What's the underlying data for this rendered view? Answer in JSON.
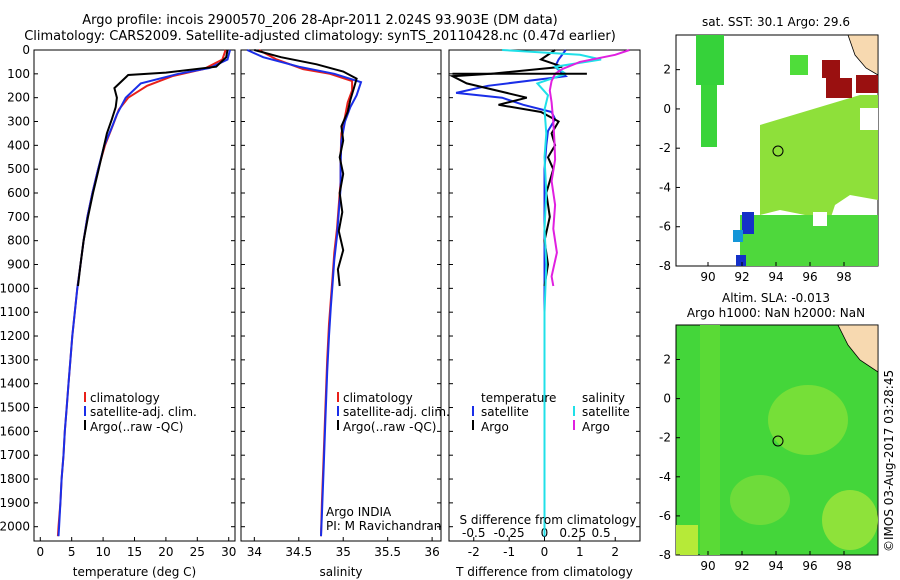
{
  "header": {
    "line1": "Argo profile: incois 2900570_206 28-Apr-2011 2.024S 93.903E (DM data)",
    "line2": "Climatology: CARS2009. Satellite-adjusted climatology: synTS_20110428.nc (0.47d earlier)"
  },
  "colors": {
    "climatology": "#e8201a",
    "satellite": "#1a2ee8",
    "argo": "#000000",
    "argo_salinity": "#e020e0",
    "satellite_salinity": "#20e0e8"
  },
  "chart_data": [
    {
      "type": "line",
      "title": "",
      "xlabel": "temperature (deg C)",
      "ylabel": "",
      "xlim": [
        -1,
        31
      ],
      "ylim": [
        2060,
        0
      ],
      "x_ticks": [
        0,
        5,
        10,
        15,
        20,
        25,
        30
      ],
      "y_ticks": [
        0,
        100,
        200,
        300,
        400,
        500,
        600,
        700,
        800,
        900,
        1000,
        1100,
        1200,
        1300,
        1400,
        1500,
        1600,
        1700,
        1800,
        1900,
        2000
      ],
      "legend": [
        "climatology",
        "satellite-adj. clim.",
        "Argo(..raw -QC)"
      ],
      "series": [
        {
          "name": "climatology",
          "color": "#e8201a",
          "points": [
            [
              29.5,
              0
            ],
            [
              29,
              40
            ],
            [
              26,
              80
            ],
            [
              21,
              110
            ],
            [
              17,
              150
            ],
            [
              14,
              200
            ],
            [
              12.5,
              250
            ],
            [
              11.5,
              320
            ],
            [
              10.3,
              400
            ],
            [
              9.2,
              500
            ],
            [
              8.3,
              600
            ],
            [
              7.5,
              700
            ],
            [
              6.9,
              800
            ],
            [
              6.4,
              900
            ],
            [
              5.9,
              1000
            ],
            [
              5.5,
              1100
            ],
            [
              5.1,
              1200
            ],
            [
              4.8,
              1300
            ],
            [
              4.5,
              1400
            ],
            [
              4.2,
              1500
            ],
            [
              3.9,
              1600
            ],
            [
              3.7,
              1700
            ],
            [
              3.4,
              1800
            ],
            [
              3.2,
              1900
            ],
            [
              2.9,
              2000
            ],
            [
              2.8,
              2040
            ]
          ]
        },
        {
          "name": "satellite-adj. clim.",
          "color": "#1a2ee8",
          "points": [
            [
              30.2,
              0
            ],
            [
              29.8,
              40
            ],
            [
              27,
              75
            ],
            [
              22,
              100
            ],
            [
              16,
              140
            ],
            [
              13.6,
              200
            ],
            [
              12.2,
              270
            ],
            [
              11.3,
              330
            ],
            [
              10.2,
              400
            ],
            [
              9.2,
              500
            ],
            [
              8.3,
              600
            ],
            [
              7.5,
              700
            ],
            [
              6.9,
              800
            ],
            [
              6.4,
              900
            ],
            [
              5.9,
              1000
            ],
            [
              5.5,
              1100
            ],
            [
              5.1,
              1200
            ],
            [
              4.8,
              1300
            ],
            [
              4.5,
              1400
            ],
            [
              4.2,
              1500
            ],
            [
              3.9,
              1600
            ],
            [
              3.7,
              1700
            ],
            [
              3.4,
              1800
            ],
            [
              3.2,
              1900
            ],
            [
              3.0,
              2000
            ],
            [
              2.9,
              2040
            ]
          ]
        },
        {
          "name": "Argo(..raw -QC)",
          "color": "#000000",
          "points": [
            [
              29.8,
              0
            ],
            [
              29.6,
              30
            ],
            [
              28,
              70
            ],
            [
              20,
              95
            ],
            [
              14,
              105
            ],
            [
              13,
              130
            ],
            [
              11.8,
              160
            ],
            [
              12.2,
              200
            ],
            [
              12.0,
              240
            ],
            [
              11.4,
              290
            ],
            [
              10.6,
              350
            ],
            [
              10.0,
              420
            ],
            [
              9.3,
              500
            ],
            [
              8.4,
              600
            ],
            [
              7.6,
              700
            ],
            [
              6.9,
              800
            ],
            [
              6.4,
              900
            ],
            [
              6.0,
              990
            ]
          ]
        }
      ]
    },
    {
      "type": "line",
      "title": "",
      "xlabel": "salinity",
      "ylabel": "",
      "xlim": [
        33.85,
        36.1
      ],
      "ylim": [
        2060,
        0
      ],
      "x_ticks": [
        34,
        34.5,
        35,
        35.5,
        36
      ],
      "legend": [
        "climatology",
        "satellite-adj. clim.",
        "Argo(..raw -QC)"
      ],
      "annotations": [
        "Argo INDIA",
        "PI: M Ravichandran"
      ],
      "series": [
        {
          "name": "climatology",
          "color": "#e8201a",
          "points": [
            [
              34.05,
              0
            ],
            [
              34.25,
              40
            ],
            [
              34.55,
              80
            ],
            [
              34.85,
              100
            ],
            [
              35.1,
              130
            ],
            [
              35.1,
              170
            ],
            [
              35.05,
              220
            ],
            [
              35.02,
              280
            ],
            [
              34.98,
              350
            ],
            [
              34.97,
              450
            ],
            [
              34.97,
              550
            ],
            [
              34.95,
              650
            ],
            [
              34.93,
              750
            ],
            [
              34.9,
              850
            ],
            [
              34.88,
              950
            ],
            [
              34.86,
              1050
            ],
            [
              34.84,
              1150
            ],
            [
              34.82,
              1300
            ],
            [
              34.8,
              1500
            ],
            [
              34.78,
              1700
            ],
            [
              34.76,
              1900
            ],
            [
              34.75,
              2040
            ]
          ]
        },
        {
          "name": "satellite-adj. clim.",
          "color": "#1a2ee8",
          "points": [
            [
              33.92,
              0
            ],
            [
              34.1,
              30
            ],
            [
              34.5,
              70
            ],
            [
              34.9,
              100
            ],
            [
              35.2,
              135
            ],
            [
              35.15,
              190
            ],
            [
              35.08,
              240
            ],
            [
              35.02,
              300
            ],
            [
              34.98,
              380
            ],
            [
              34.97,
              480
            ],
            [
              34.97,
              580
            ],
            [
              34.95,
              680
            ],
            [
              34.93,
              780
            ],
            [
              34.9,
              880
            ],
            [
              34.88,
              980
            ],
            [
              34.86,
              1080
            ],
            [
              34.84,
              1200
            ],
            [
              34.82,
              1350
            ],
            [
              34.8,
              1550
            ],
            [
              34.78,
              1750
            ],
            [
              34.76,
              1950
            ],
            [
              34.75,
              2040
            ]
          ]
        },
        {
          "name": "Argo(..raw -QC)",
          "color": "#000000",
          "points": [
            [
              34.0,
              0
            ],
            [
              34.3,
              30
            ],
            [
              34.7,
              60
            ],
            [
              35.0,
              90
            ],
            [
              35.15,
              120
            ],
            [
              35.12,
              160
            ],
            [
              35.08,
              210
            ],
            [
              35.05,
              260
            ],
            [
              34.98,
              320
            ],
            [
              35.0,
              380
            ],
            [
              34.96,
              450
            ],
            [
              35.0,
              520
            ],
            [
              34.96,
              600
            ],
            [
              34.99,
              680
            ],
            [
              34.95,
              760
            ],
            [
              35.0,
              840
            ],
            [
              34.94,
              920
            ],
            [
              34.96,
              990
            ]
          ]
        }
      ]
    },
    {
      "type": "line",
      "title": "",
      "xlabel": "T difference from climatology",
      "x2label": "S difference from climatology",
      "ylabel": "",
      "xlim": [
        -2.7,
        2.7
      ],
      "ylim": [
        2060,
        0
      ],
      "x_ticks": [
        -2,
        -1,
        0,
        1,
        2
      ],
      "x2_ticks": [
        "-0.5",
        "-0.25",
        "0",
        "0.25",
        "0.5"
      ],
      "legend": [
        "temperature",
        "satellite",
        "Argo",
        "salinity",
        "satellite",
        "Argo"
      ],
      "series": [
        {
          "name": "T satellite",
          "color": "#1a2ee8",
          "points": [
            [
              0.6,
              0
            ],
            [
              0.4,
              40
            ],
            [
              0.3,
              70
            ],
            [
              0.6,
              110
            ],
            [
              -1.6,
              150
            ],
            [
              -2.5,
              180
            ],
            [
              -1.2,
              200
            ],
            [
              -0.6,
              230
            ],
            [
              0.2,
              260
            ],
            [
              0.3,
              290
            ],
            [
              0.1,
              340
            ],
            [
              0.05,
              400
            ],
            [
              0.0,
              500
            ],
            [
              0.0,
              700
            ],
            [
              0.0,
              900
            ],
            [
              0.0,
              1100
            ],
            [
              0.0,
              1400
            ],
            [
              0.0,
              1700
            ],
            [
              0.0,
              2040
            ]
          ]
        },
        {
          "name": "T Argo",
          "color": "#000000",
          "points": [
            [
              0.3,
              0
            ],
            [
              -0.1,
              40
            ],
            [
              0.5,
              70
            ],
            [
              -1.5,
              100
            ],
            [
              -2.6,
              110
            ],
            [
              -2.2,
              140
            ],
            [
              -0.5,
              200
            ],
            [
              -1.3,
              230
            ],
            [
              -0.1,
              260
            ],
            [
              0.4,
              300
            ],
            [
              0.2,
              350
            ],
            [
              0.3,
              400
            ],
            [
              0.1,
              450
            ],
            [
              0.25,
              500
            ],
            [
              0.05,
              600
            ],
            [
              0.15,
              700
            ],
            [
              0.0,
              800
            ],
            [
              0.1,
              900
            ],
            [
              0.0,
              990
            ]
          ]
        },
        {
          "name": "S satellite",
          "color": "#20e0e8",
          "points": [
            [
              -1.2,
              0
            ],
            [
              1.0,
              20
            ],
            [
              1.6,
              40
            ],
            [
              0.3,
              70
            ],
            [
              0.6,
              100
            ],
            [
              -0.2,
              140
            ],
            [
              0.1,
              190
            ],
            [
              0.0,
              250
            ],
            [
              0.05,
              350
            ],
            [
              0.0,
              450
            ],
            [
              0.05,
              600
            ],
            [
              0.0,
              750
            ],
            [
              0.05,
              900
            ],
            [
              0.0,
              1100
            ],
            [
              0.0,
              1400
            ],
            [
              0.0,
              1700
            ],
            [
              0.0,
              2040
            ]
          ]
        },
        {
          "name": "S Argo",
          "color": "#e020e0",
          "points": [
            [
              2.4,
              0
            ],
            [
              2.0,
              20
            ],
            [
              1.0,
              50
            ],
            [
              0.5,
              80
            ],
            [
              0.3,
              100
            ],
            [
              0.2,
              130
            ],
            [
              0.15,
              170
            ],
            [
              0.2,
              220
            ],
            [
              0.25,
              300
            ],
            [
              0.28,
              380
            ],
            [
              0.3,
              460
            ],
            [
              0.2,
              550
            ],
            [
              0.3,
              650
            ],
            [
              0.25,
              750
            ],
            [
              0.35,
              850
            ],
            [
              0.2,
              950
            ],
            [
              0.25,
              990
            ]
          ]
        },
        {
          "name": "S Argo dash",
          "color": "#000000",
          "points": [
            [
              -2.6,
              100
            ],
            [
              1.2,
              100
            ]
          ]
        }
      ]
    }
  ],
  "maps": {
    "top": {
      "title": "sat. SST: 30.1  Argo: 29.6",
      "x_ticks": [
        "90",
        "92",
        "94",
        "96",
        "98"
      ],
      "y_ticks": [
        "2",
        "0",
        "-2",
        "-4",
        "-6",
        "-8"
      ]
    },
    "bottom": {
      "title1": "Altim. SLA: -0.013",
      "title2": "Argo h1000: NaN h2000: NaN",
      "x_ticks": [
        "90",
        "92",
        "94",
        "96",
        "98"
      ],
      "y_ticks": [
        "2",
        "0",
        "-2",
        "-4",
        "-6",
        "-8"
      ]
    }
  },
  "credit": "©IMOS 03-Aug-2017 03:28:45"
}
